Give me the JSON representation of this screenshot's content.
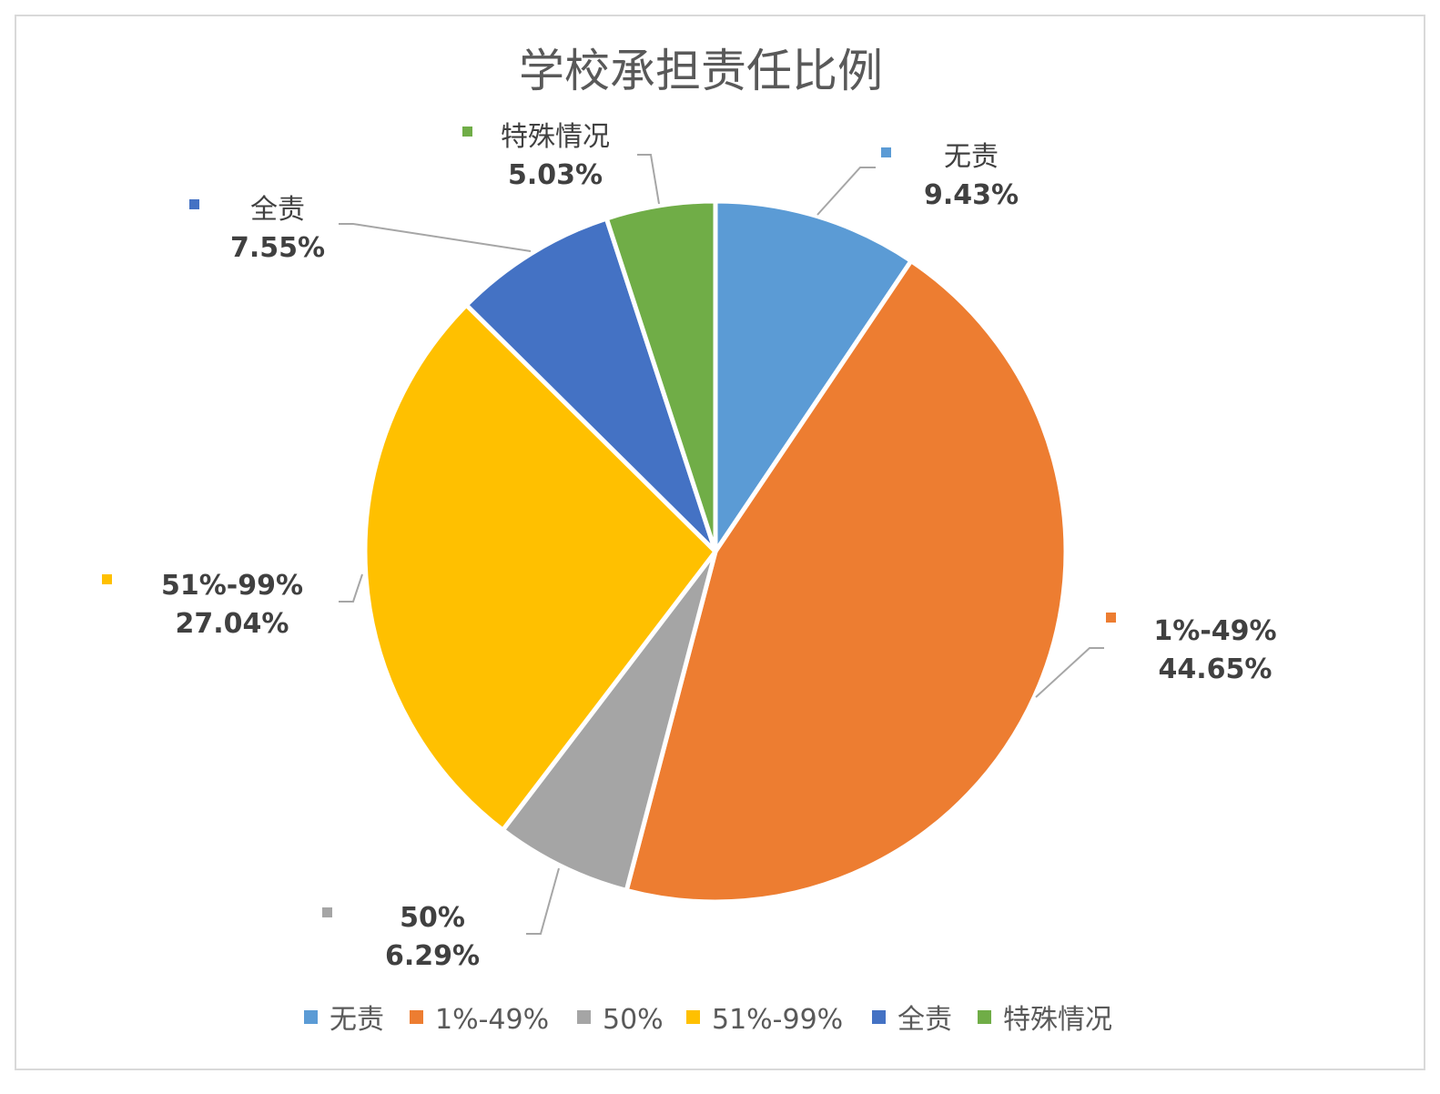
{
  "chart_data": {
    "type": "pie",
    "title": "学校承担责任比例",
    "categories": [
      "无责",
      "1%-49%",
      "50%",
      "51%-99%",
      "全责",
      "特殊情况"
    ],
    "values": [
      9.43,
      44.65,
      6.29,
      27.04,
      7.55,
      5.03
    ],
    "value_labels": [
      "9.43%",
      "44.65%",
      "6.29%",
      "27.04%",
      "7.55%",
      "5.03%"
    ],
    "colors": [
      "#5b9bd5",
      "#ed7d31",
      "#a5a5a5",
      "#ffc000",
      "#4472c4",
      "#70ad47"
    ],
    "legend_position": "bottom"
  }
}
